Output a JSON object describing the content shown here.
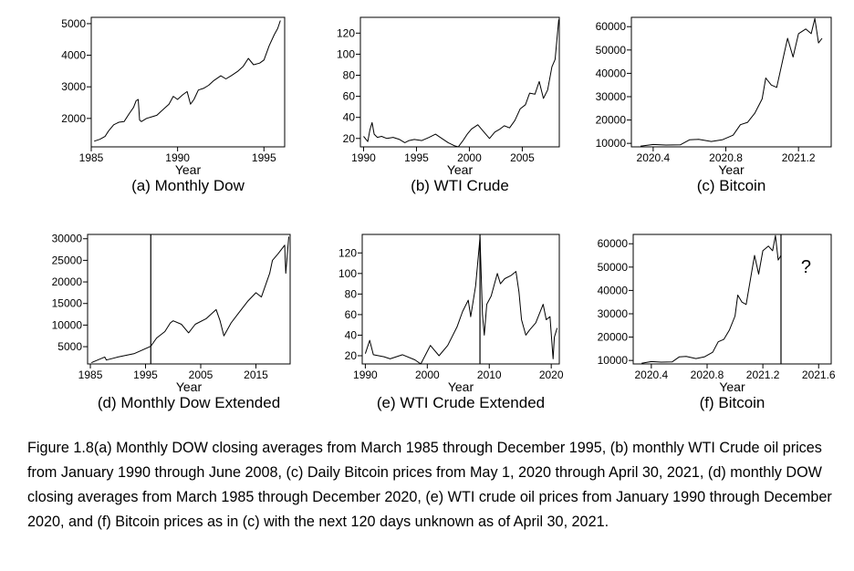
{
  "caption": "Figure 1.8(a) Monthly DOW closing averages from March 1985 through December 1995, (b) monthly WTI Crude oil prices from January 1990 through June 2008, (c) Daily Bitcoin prices from May 1, 2020 through April 30, 2021, (d) monthly DOW closing averages from March 1985 through December 2020, (e) WTI crude oil prices from January 1990 through December 2020, and (f) Bitcoin prices as in (c) with the next 120 days unknown as of April 30, 2021.",
  "chart_data": [
    {
      "id": "a",
      "type": "line",
      "title": "(a) Monthly Dow",
      "xlabel": "Year",
      "ylabel": "",
      "xlim": [
        1985,
        1996.2
      ],
      "ylim": [
        1100,
        5200
      ],
      "xticks": [
        1985,
        1990,
        1995
      ],
      "yticks": [
        2000,
        3000,
        4000,
        5000
      ],
      "grid": false,
      "series": [
        {
          "x": [
            1985.17,
            1985.5,
            1985.8,
            1986.0,
            1986.3,
            1986.6,
            1986.9,
            1987.2,
            1987.45,
            1987.6,
            1987.72,
            1987.8,
            1987.9,
            1988.2,
            1988.5,
            1988.8,
            1989.2,
            1989.5,
            1989.75,
            1990.0,
            1990.3,
            1990.55,
            1990.75,
            1990.95,
            1991.2,
            1991.5,
            1991.8,
            1992.1,
            1992.5,
            1992.8,
            1993.1,
            1993.5,
            1993.8,
            1994.1,
            1994.4,
            1994.75,
            1995.0,
            1995.3,
            1995.6,
            1995.8,
            1995.95
          ],
          "y": [
            1280,
            1340,
            1430,
            1600,
            1800,
            1880,
            1900,
            2150,
            2350,
            2560,
            2600,
            1950,
            1900,
            2000,
            2050,
            2100,
            2300,
            2450,
            2700,
            2600,
            2750,
            2850,
            2450,
            2600,
            2900,
            2950,
            3050,
            3200,
            3350,
            3250,
            3350,
            3500,
            3650,
            3900,
            3700,
            3750,
            3850,
            4300,
            4650,
            4850,
            5100
          ]
        }
      ]
    },
    {
      "id": "b",
      "type": "line",
      "title": "(b) WTI Crude",
      "xlabel": "Year",
      "ylabel": "",
      "xlim": [
        1989.7,
        2008.5
      ],
      "ylim": [
        12,
        135
      ],
      "xticks": [
        1990,
        1995,
        2000,
        2005
      ],
      "yticks": [
        20,
        40,
        60,
        80,
        100,
        120
      ],
      "grid": false,
      "series": [
        {
          "x": [
            1990.0,
            1990.4,
            1990.6,
            1990.8,
            1991.0,
            1991.3,
            1991.7,
            1992.2,
            1992.8,
            1993.4,
            1993.9,
            1994.3,
            1994.8,
            1995.5,
            1996.2,
            1996.8,
            1997.4,
            1998.0,
            1998.6,
            1998.95,
            1999.4,
            1999.8,
            2000.2,
            2000.8,
            2001.3,
            2001.9,
            2002.4,
            2002.9,
            2003.3,
            2003.8,
            2004.3,
            2004.8,
            2005.3,
            2005.7,
            2006.2,
            2006.6,
            2007.0,
            2007.4,
            2007.8,
            2008.1,
            2008.45
          ],
          "y": [
            22,
            17,
            28,
            35,
            24,
            21,
            22,
            20,
            21,
            19,
            16,
            18,
            19,
            18,
            21,
            24,
            20,
            16,
            13,
            12,
            18,
            24,
            29,
            33,
            27,
            20,
            26,
            29,
            32,
            30,
            37,
            48,
            52,
            63,
            62,
            74,
            58,
            66,
            88,
            95,
            133
          ]
        }
      ]
    },
    {
      "id": "c",
      "type": "line",
      "title": "(c) Bitcoin",
      "xlabel": "Year",
      "ylabel": "",
      "xlim": [
        2020.28,
        2021.38
      ],
      "ylim": [
        8500,
        64000
      ],
      "xticks": [
        2020.4,
        2020.8,
        2021.2
      ],
      "yticks": [
        10000,
        20000,
        30000,
        40000,
        50000,
        60000
      ],
      "grid": false,
      "series": [
        {
          "x": [
            2020.33,
            2020.4,
            2020.47,
            2020.55,
            2020.6,
            2020.65,
            2020.72,
            2020.78,
            2020.84,
            2020.88,
            2020.92,
            2020.96,
            2021.0,
            2021.02,
            2021.05,
            2021.08,
            2021.12,
            2021.14,
            2021.17,
            2021.2,
            2021.24,
            2021.27,
            2021.29,
            2021.31,
            2021.33
          ],
          "y": [
            8800,
            9500,
            9300,
            9400,
            11500,
            11700,
            10800,
            11500,
            13500,
            18000,
            19000,
            23000,
            29000,
            38000,
            35000,
            34000,
            48000,
            55000,
            47000,
            57000,
            59000,
            57000,
            63500,
            53000,
            55000
          ]
        }
      ]
    },
    {
      "id": "d",
      "type": "line",
      "title": "(d) Monthly Dow Extended",
      "xlabel": "Year",
      "ylabel": "",
      "xlim": [
        1984.5,
        2021.2
      ],
      "ylim": [
        1000,
        31000
      ],
      "xticks": [
        1985,
        1995,
        2005,
        2015
      ],
      "yticks": [
        5000,
        10000,
        15000,
        20000,
        25000,
        30000
      ],
      "grid": false,
      "vline": 1995.95,
      "series": [
        {
          "x": [
            1985.2,
            1987.6,
            1987.9,
            1990.0,
            1993.0,
            1995.95,
            1997.0,
            1998.5,
            1999.5,
            2000.0,
            2001.5,
            2002.8,
            2004.0,
            2006.0,
            2007.8,
            2008.5,
            2009.2,
            2010.5,
            2012.0,
            2013.5,
            2015.0,
            2016.0,
            2017.5,
            2018.0,
            2019.0,
            2020.2,
            2020.4,
            2020.95
          ],
          "y": [
            1300,
            2600,
            1900,
            2600,
            3400,
            5100,
            7000,
            8500,
            10500,
            11000,
            10200,
            8200,
            10200,
            11500,
            13600,
            11000,
            7500,
            10500,
            13000,
            15500,
            17500,
            16500,
            22000,
            25000,
            26500,
            28500,
            22000,
            30500
          ]
        }
      ]
    },
    {
      "id": "e",
      "type": "line",
      "title": "(e) WTI Crude Extended",
      "xlabel": "Year",
      "ylabel": "",
      "xlim": [
        1989.5,
        2021.3
      ],
      "ylim": [
        12,
        138
      ],
      "xticks": [
        1990,
        2000,
        2010,
        2020
      ],
      "yticks": [
        20,
        40,
        60,
        80,
        100,
        120
      ],
      "grid": false,
      "vline": 2008.5,
      "series": [
        {
          "x": [
            1990.0,
            1990.7,
            1991.3,
            1993.0,
            1994.0,
            1996.0,
            1998.0,
            1998.95,
            2000.5,
            2001.9,
            2003.3,
            2004.8,
            2005.7,
            2006.6,
            2007.0,
            2007.8,
            2008.5,
            2008.9,
            2009.2,
            2009.6,
            2010.3,
            2011.3,
            2011.8,
            2012.5,
            2013.5,
            2014.3,
            2014.8,
            2015.2,
            2015.9,
            2016.5,
            2017.5,
            2018.7,
            2019.2,
            2019.8,
            2020.3,
            2020.5,
            2020.95
          ],
          "y": [
            22,
            35,
            21,
            19,
            17,
            21,
            16,
            12,
            30,
            20,
            30,
            48,
            63,
            74,
            58,
            88,
            135,
            60,
            40,
            70,
            78,
            100,
            90,
            95,
            98,
            102,
            82,
            55,
            40,
            45,
            52,
            70,
            55,
            58,
            17,
            38,
            47
          ]
        }
      ]
    },
    {
      "id": "f",
      "type": "line",
      "title": "(f) Bitcoin",
      "xlabel": "Year",
      "ylabel": "",
      "xlim": [
        2020.27,
        2021.69
      ],
      "ylim": [
        8500,
        64000
      ],
      "xticks": [
        2020.4,
        2020.8,
        2021.2,
        2021.6
      ],
      "yticks": [
        10000,
        20000,
        30000,
        40000,
        50000,
        60000
      ],
      "grid": false,
      "vline": 2021.33,
      "annotation": "?",
      "series": [
        {
          "x": [
            2020.33,
            2020.4,
            2020.47,
            2020.55,
            2020.6,
            2020.65,
            2020.72,
            2020.78,
            2020.84,
            2020.88,
            2020.92,
            2020.96,
            2021.0,
            2021.02,
            2021.05,
            2021.08,
            2021.12,
            2021.14,
            2021.17,
            2021.2,
            2021.24,
            2021.27,
            2021.29,
            2021.31,
            2021.33
          ],
          "y": [
            8800,
            9500,
            9300,
            9400,
            11500,
            11700,
            10800,
            11500,
            13500,
            18000,
            19000,
            23000,
            29000,
            38000,
            35000,
            34000,
            48000,
            55000,
            47000,
            57000,
            59000,
            57000,
            63500,
            53000,
            55000
          ]
        }
      ]
    }
  ]
}
